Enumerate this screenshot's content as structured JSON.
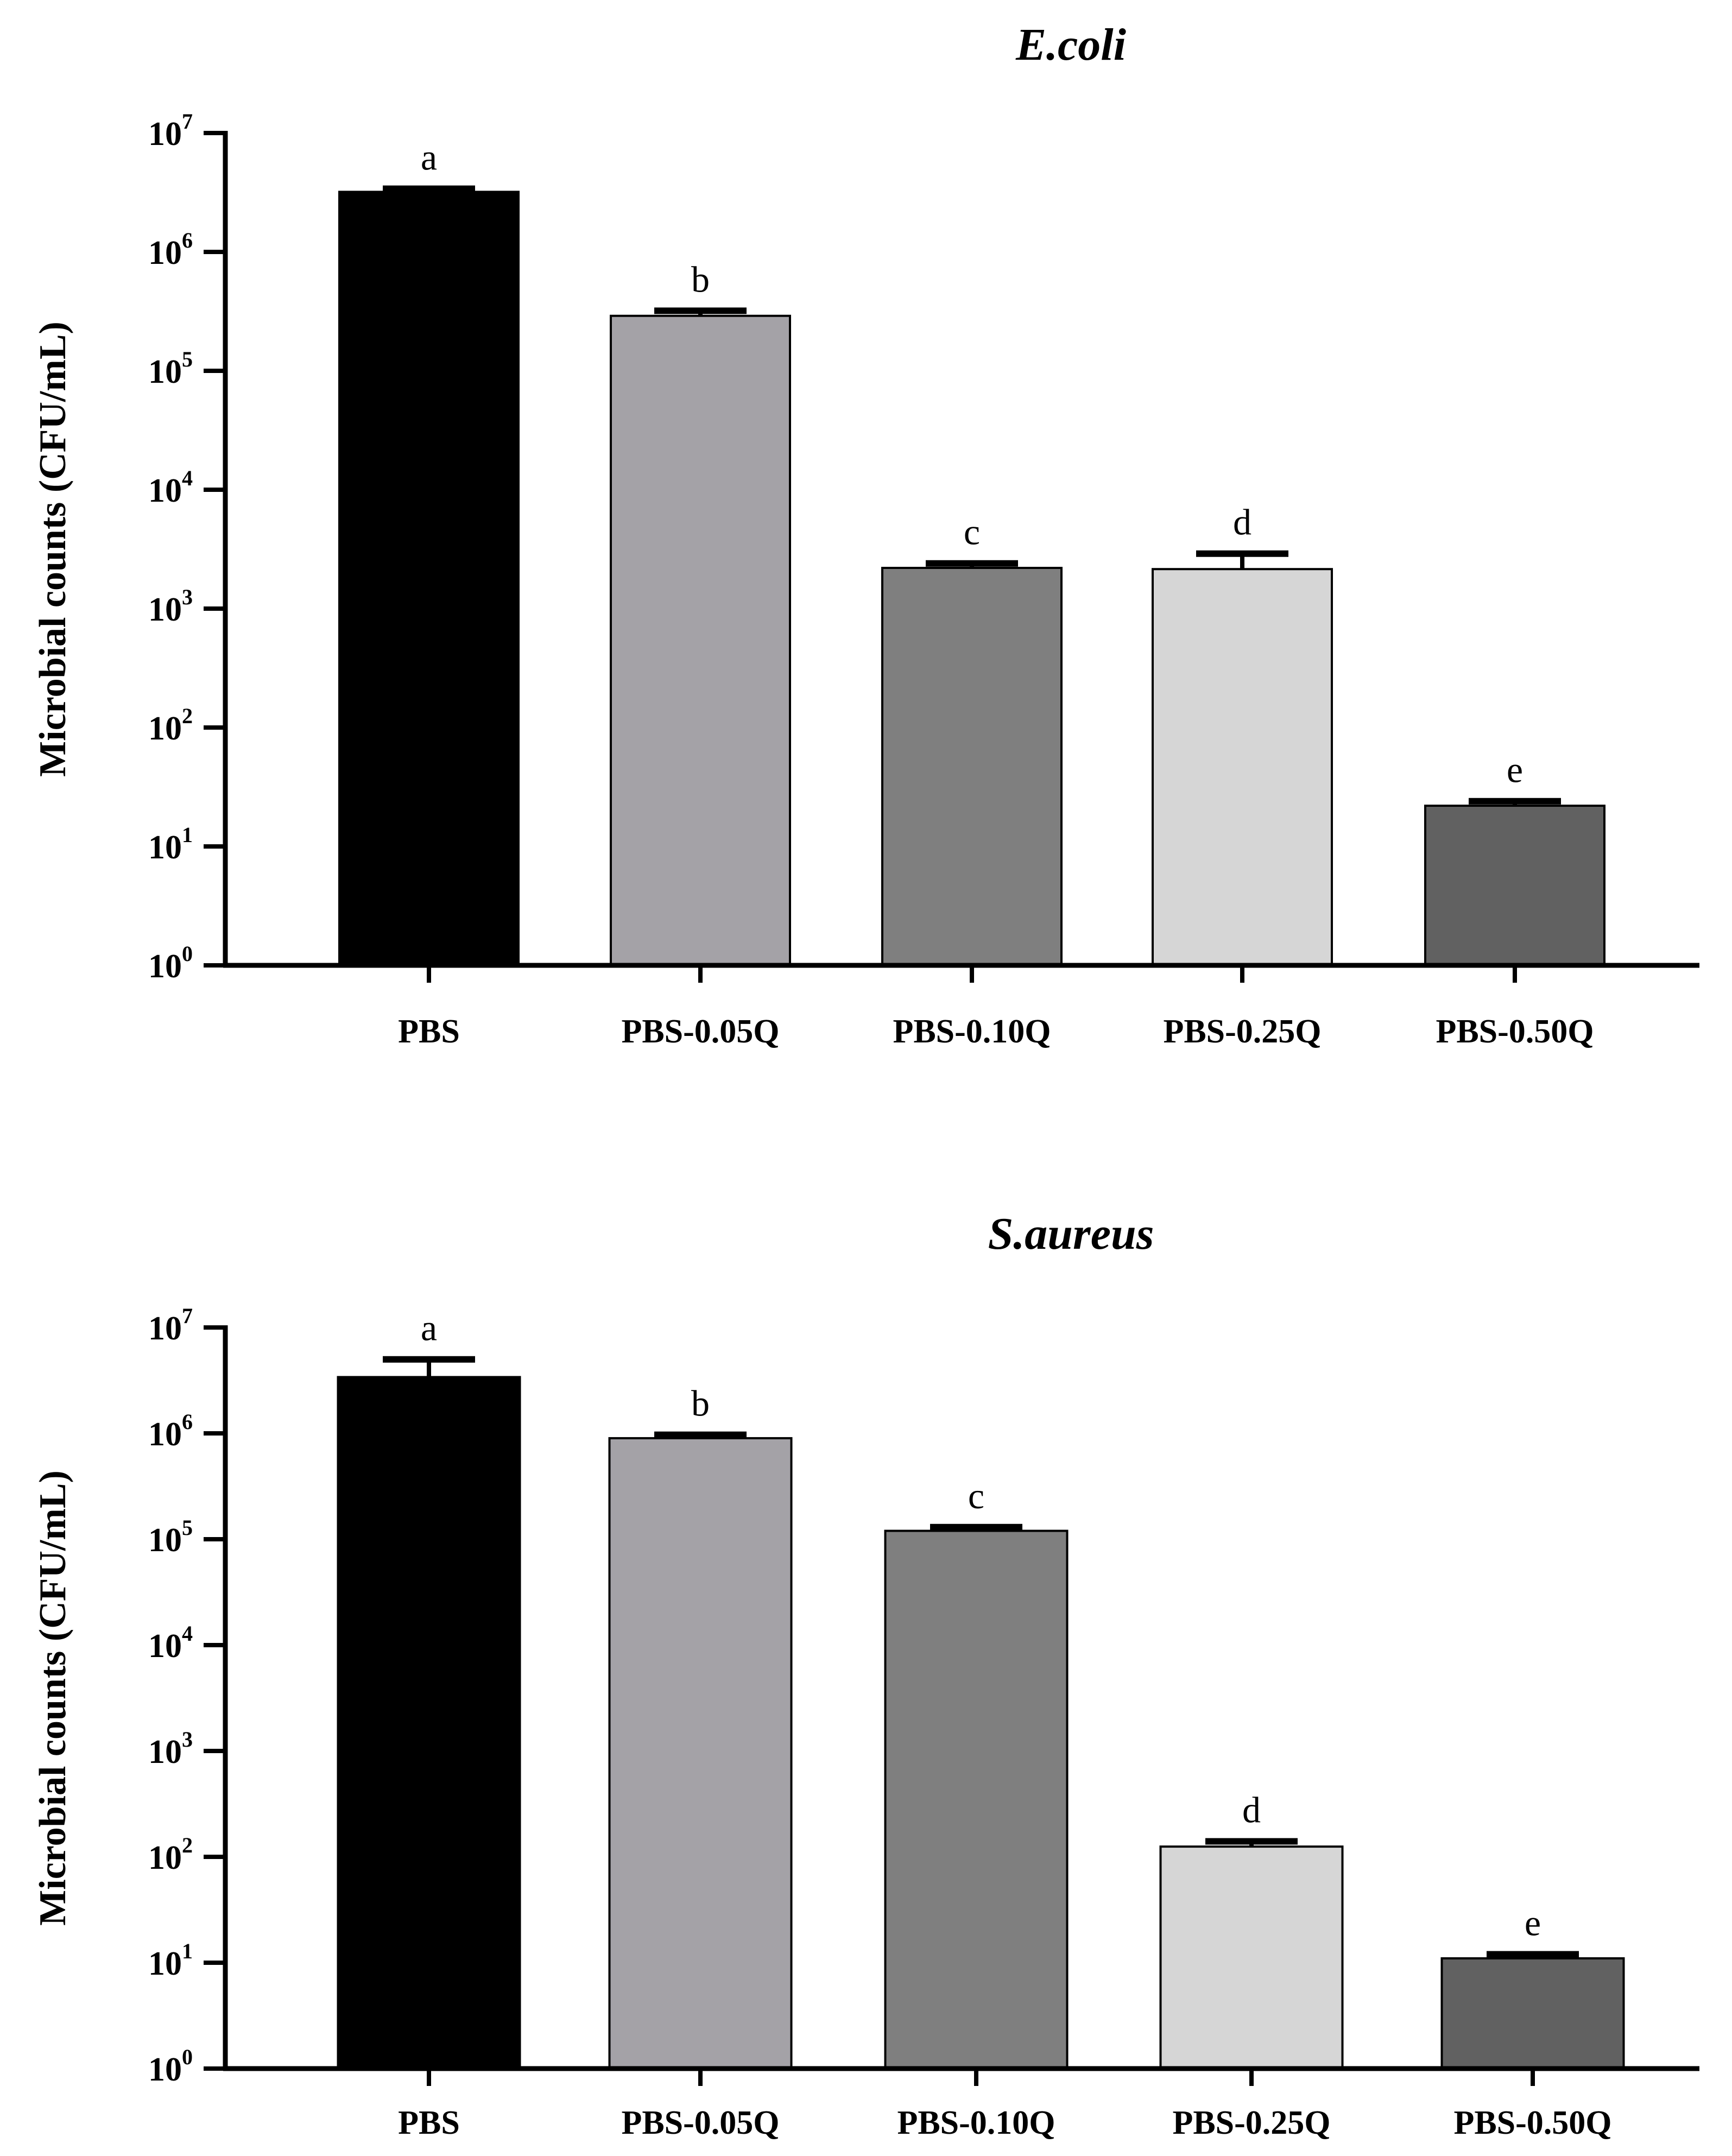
{
  "chart_data": [
    {
      "type": "bar",
      "title": "E.coli",
      "ylabel": "Microbial counts (CFU/mL)",
      "xlabel": "",
      "yscale": "log",
      "ylim": [
        1,
        10000000
      ],
      "yticks": [
        {
          "base": "10",
          "exp": "0"
        },
        {
          "base": "10",
          "exp": "1"
        },
        {
          "base": "10",
          "exp": "2"
        },
        {
          "base": "10",
          "exp": "3"
        },
        {
          "base": "10",
          "exp": "4"
        },
        {
          "base": "10",
          "exp": "5"
        },
        {
          "base": "10",
          "exp": "6"
        },
        {
          "base": "10",
          "exp": "7"
        }
      ],
      "categories": [
        "PBS",
        "PBS-0.05Q",
        "PBS-0.10Q",
        "PBS-0.25Q",
        "PBS-0.50Q"
      ],
      "values": [
        3200000,
        290000,
        2200,
        2150,
        22
      ],
      "error_upper": [
        3400000,
        320000,
        2400,
        2900,
        24
      ],
      "letters": [
        "a",
        "b",
        "c",
        "d",
        "e"
      ],
      "colors": [
        "#000000",
        "#a4a2a7",
        "#7f7f7f",
        "#d6d6d6",
        "#616161"
      ]
    },
    {
      "type": "bar",
      "title": "S.aureus",
      "ylabel": "Microbial counts (CFU/mL)",
      "xlabel": "",
      "yscale": "log",
      "ylim": [
        1,
        10000000
      ],
      "yticks": [
        {
          "base": "10",
          "exp": "0"
        },
        {
          "base": "10",
          "exp": "1"
        },
        {
          "base": "10",
          "exp": "2"
        },
        {
          "base": "10",
          "exp": "3"
        },
        {
          "base": "10",
          "exp": "4"
        },
        {
          "base": "10",
          "exp": "5"
        },
        {
          "base": "10",
          "exp": "6"
        },
        {
          "base": "10",
          "exp": "7"
        }
      ],
      "categories": [
        "PBS",
        "PBS-0.05Q",
        "PBS-0.10Q",
        "PBS-0.25Q",
        "PBS-0.50Q"
      ],
      "values": [
        3400000,
        900000,
        120000,
        125,
        11
      ],
      "error_upper": [
        5000000,
        970000,
        130000,
        140,
        12
      ],
      "letters": [
        "a",
        "b",
        "c",
        "d",
        "e"
      ],
      "colors": [
        "#000000",
        "#a4a2a7",
        "#7f7f7f",
        "#d6d6d6",
        "#616161"
      ]
    }
  ]
}
